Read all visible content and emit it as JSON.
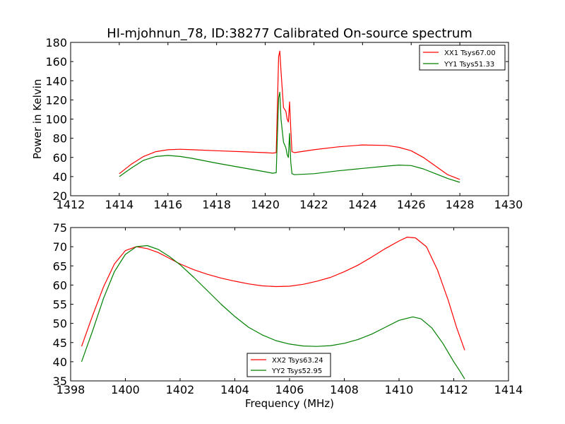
{
  "chart_data": [
    {
      "type": "line",
      "title": "HI-mjohnun_78, ID:38277 Calibrated On-source spectrum",
      "xlabel": "",
      "ylabel": "Power in Kelvin",
      "xlim": [
        1412,
        1430
      ],
      "ylim": [
        20,
        180
      ],
      "xticks": [
        1412,
        1414,
        1416,
        1418,
        1420,
        1422,
        1424,
        1426,
        1428,
        1430
      ],
      "yticks": [
        20,
        40,
        60,
        80,
        100,
        120,
        140,
        160,
        180
      ],
      "grid": false,
      "legend_position": "top-right",
      "series": [
        {
          "name": "XX1 Tsys67.00",
          "color": "#ff0000",
          "x": [
            1414.0,
            1414.5,
            1415.0,
            1415.5,
            1416.0,
            1416.5,
            1417.0,
            1418.0,
            1419.0,
            1420.0,
            1420.3,
            1420.45,
            1420.55,
            1420.6,
            1420.65,
            1420.75,
            1420.85,
            1420.9,
            1420.95,
            1421.0,
            1421.05,
            1421.1,
            1421.2,
            1422.0,
            1423.0,
            1424.0,
            1425.0,
            1425.5,
            1426.0,
            1426.5,
            1427.0,
            1427.5,
            1428.0
          ],
          "y": [
            43,
            53,
            61,
            66,
            68,
            68.5,
            68,
            67,
            66,
            65,
            64.5,
            65,
            165,
            171,
            150,
            112,
            108,
            100,
            97,
            118,
            90,
            66,
            65,
            68,
            71,
            73,
            72.5,
            70.5,
            67,
            60,
            51,
            42,
            37
          ]
        },
        {
          "name": "YY1 Tsys51.33",
          "color": "#008000",
          "x": [
            1414.0,
            1414.5,
            1415.0,
            1415.5,
            1416.0,
            1416.5,
            1417.0,
            1418.0,
            1419.0,
            1420.0,
            1420.3,
            1420.45,
            1420.55,
            1420.6,
            1420.65,
            1420.75,
            1420.85,
            1420.9,
            1420.95,
            1421.0,
            1421.05,
            1421.1,
            1421.2,
            1422.0,
            1423.0,
            1424.0,
            1425.0,
            1425.5,
            1426.0,
            1426.5,
            1427.0,
            1427.5,
            1428.0
          ],
          "y": [
            40,
            49,
            57,
            61,
            62,
            61,
            59,
            54,
            49.5,
            45,
            43.5,
            44,
            122,
            128,
            100,
            76,
            70,
            63,
            60,
            85,
            55,
            43,
            42,
            43,
            46,
            48.5,
            51,
            52,
            51.5,
            48,
            43,
            38,
            34
          ]
        }
      ]
    },
    {
      "type": "line",
      "title": "",
      "xlabel": "Frequency (MHz)",
      "ylabel": "",
      "xlim": [
        1398,
        1414
      ],
      "ylim": [
        35,
        75
      ],
      "xticks": [
        1398,
        1400,
        1402,
        1404,
        1406,
        1408,
        1410,
        1412,
        1414
      ],
      "yticks": [
        35,
        40,
        45,
        50,
        55,
        60,
        65,
        70,
        75
      ],
      "grid": false,
      "legend_position": "bottom-center",
      "series": [
        {
          "name": "XX2 Tsys63.24",
          "color": "#ff0000",
          "x": [
            1398.4,
            1398.8,
            1399.2,
            1399.6,
            1400.0,
            1400.4,
            1400.8,
            1401.2,
            1401.6,
            1402.0,
            1402.5,
            1403.0,
            1403.5,
            1404.0,
            1404.5,
            1405.0,
            1405.5,
            1406.0,
            1406.5,
            1407.0,
            1407.5,
            1408.0,
            1408.5,
            1409.0,
            1409.5,
            1410.0,
            1410.3,
            1410.6,
            1411.0,
            1411.4,
            1411.8,
            1412.1,
            1412.4
          ],
          "y": [
            44,
            52,
            59.5,
            65.5,
            69,
            70,
            69.5,
            68.5,
            67,
            65.5,
            64,
            62.8,
            61.8,
            61,
            60.3,
            59.8,
            59.6,
            59.7,
            60.2,
            61,
            62,
            63.5,
            65.2,
            67.3,
            69.5,
            71.5,
            72.5,
            72.3,
            70,
            64,
            56,
            49,
            43
          ]
        },
        {
          "name": "YY2 Tsys52.95",
          "color": "#008000",
          "x": [
            1398.4,
            1398.8,
            1399.2,
            1399.6,
            1400.0,
            1400.4,
            1400.8,
            1401.2,
            1401.6,
            1402.0,
            1402.5,
            1403.0,
            1403.5,
            1404.0,
            1404.5,
            1405.0,
            1405.5,
            1406.0,
            1406.5,
            1407.0,
            1407.5,
            1408.0,
            1408.5,
            1409.0,
            1409.5,
            1410.0,
            1410.5,
            1410.8,
            1411.2,
            1411.6,
            1412.0,
            1412.2,
            1412.4
          ],
          "y": [
            40,
            48,
            56.5,
            63.5,
            68,
            70,
            70.3,
            69.3,
            67.5,
            65.3,
            62,
            58.5,
            55,
            51.8,
            49,
            47,
            45.5,
            44.6,
            44.1,
            44,
            44.2,
            44.8,
            45.8,
            47.2,
            49,
            50.8,
            51.7,
            51.2,
            48.8,
            44.8,
            40,
            37.8,
            35.5
          ]
        }
      ]
    }
  ]
}
